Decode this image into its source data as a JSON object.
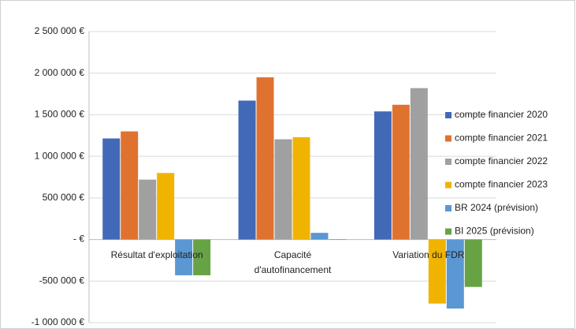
{
  "chart_data": {
    "type": "bar",
    "categories": [
      "Résultat d'exploitation",
      "Capacité d'autofinancement",
      "Variation du FDR"
    ],
    "series": [
      {
        "name": "compte financier 2020",
        "color": "#4169b8",
        "values": [
          1215000,
          1670000,
          1540000
        ]
      },
      {
        "name": "compte financier 2021",
        "color": "#e07230",
        "values": [
          1300000,
          1950000,
          1620000
        ]
      },
      {
        "name": "compte financier 2022",
        "color": "#a0a0a0",
        "values": [
          720000,
          1205000,
          1820000
        ]
      },
      {
        "name": "compte financier 2023",
        "color": "#f0b400",
        "values": [
          800000,
          1230000,
          -770000
        ]
      },
      {
        "name": "BR 2024 (prévision)",
        "color": "#5b97d3",
        "values": [
          -430000,
          80000,
          -830000
        ]
      },
      {
        "name": "BI 2025 (prévision)",
        "color": "#67a344",
        "values": [
          -430000,
          5000,
          -570000
        ]
      }
    ],
    "ylim": [
      -1000000,
      2500000
    ],
    "yticks": [
      {
        "value": -1000000,
        "label": "-1 000 000 €"
      },
      {
        "value": -500000,
        "label": "-500 000 €"
      },
      {
        "value": 0,
        "label": "- €"
      },
      {
        "value": 500000,
        "label": "500 000 €"
      },
      {
        "value": 1000000,
        "label": "1 000 000 €"
      },
      {
        "value": 1500000,
        "label": "1 500 000 €"
      },
      {
        "value": 2000000,
        "label": "2 000 000 €"
      },
      {
        "value": 2500000,
        "label": "2 500 000 €"
      }
    ],
    "grid": true,
    "legend": "right"
  }
}
